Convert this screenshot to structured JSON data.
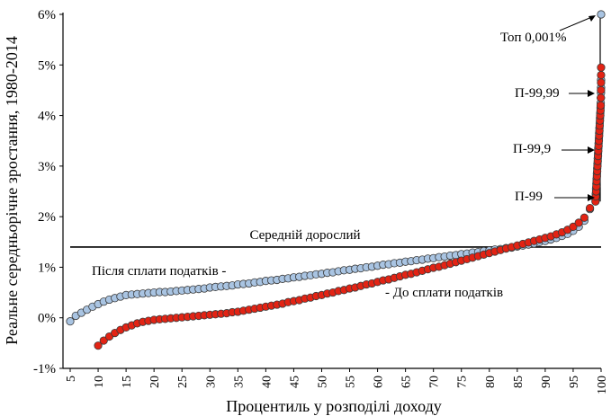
{
  "chart_data": {
    "type": "scatter",
    "title": "",
    "xlabel": "Процентиль у розподілі доходу",
    "ylabel": "Реальне середньорічне зростання, 1980-2014",
    "xlim": [
      5,
      100
    ],
    "ylim": [
      -1,
      6
    ],
    "yticks": [
      "-1%",
      "0%",
      "1%",
      "2%",
      "3%",
      "4%",
      "5%",
      "6%"
    ],
    "ytick_values": [
      -1,
      0,
      1,
      2,
      3,
      4,
      5,
      6
    ],
    "xticks": [
      "5",
      "10",
      "15",
      "20",
      "25",
      "30",
      "35",
      "40",
      "45",
      "50",
      "55",
      "60",
      "65",
      "70",
      "75",
      "80",
      "85",
      "90",
      "95",
      "100"
    ],
    "xtick_values": [
      5,
      10,
      15,
      20,
      25,
      30,
      35,
      40,
      45,
      50,
      55,
      60,
      65,
      70,
      75,
      80,
      85,
      90,
      95,
      100
    ],
    "grid": false,
    "reference_line": {
      "label": "Середній дорослий",
      "y": 1.4
    },
    "series": [
      {
        "name": "Після сплати податків",
        "color": "#a9c4e2",
        "points": [
          [
            5,
            -0.07
          ],
          [
            6,
            0.04
          ],
          [
            7,
            0.1
          ],
          [
            8,
            0.16
          ],
          [
            9,
            0.22
          ],
          [
            10,
            0.27
          ],
          [
            11,
            0.32
          ],
          [
            12,
            0.36
          ],
          [
            13,
            0.39
          ],
          [
            14,
            0.42
          ],
          [
            15,
            0.45
          ],
          [
            16,
            0.46
          ],
          [
            17,
            0.47
          ],
          [
            18,
            0.48
          ],
          [
            19,
            0.49
          ],
          [
            20,
            0.5
          ],
          [
            21,
            0.51
          ],
          [
            22,
            0.51
          ],
          [
            23,
            0.52
          ],
          [
            24,
            0.53
          ],
          [
            25,
            0.54
          ],
          [
            26,
            0.55
          ],
          [
            27,
            0.56
          ],
          [
            28,
            0.57
          ],
          [
            29,
            0.58
          ],
          [
            30,
            0.6
          ],
          [
            31,
            0.61
          ],
          [
            32,
            0.62
          ],
          [
            33,
            0.63
          ],
          [
            34,
            0.64
          ],
          [
            35,
            0.66
          ],
          [
            36,
            0.67
          ],
          [
            37,
            0.68
          ],
          [
            38,
            0.7
          ],
          [
            39,
            0.71
          ],
          [
            40,
            0.73
          ],
          [
            41,
            0.74
          ],
          [
            42,
            0.75
          ],
          [
            43,
            0.77
          ],
          [
            44,
            0.78
          ],
          [
            45,
            0.8
          ],
          [
            46,
            0.81
          ],
          [
            47,
            0.83
          ],
          [
            48,
            0.84
          ],
          [
            49,
            0.86
          ],
          [
            50,
            0.87
          ],
          [
            51,
            0.89
          ],
          [
            52,
            0.9
          ],
          [
            53,
            0.92
          ],
          [
            54,
            0.94
          ],
          [
            55,
            0.95
          ],
          [
            56,
            0.97
          ],
          [
            57,
            0.98
          ],
          [
            58,
            1.0
          ],
          [
            59,
            1.01
          ],
          [
            60,
            1.03
          ],
          [
            61,
            1.05
          ],
          [
            62,
            1.06
          ],
          [
            63,
            1.08
          ],
          [
            64,
            1.09
          ],
          [
            65,
            1.11
          ],
          [
            66,
            1.12
          ],
          [
            67,
            1.14
          ],
          [
            68,
            1.15
          ],
          [
            69,
            1.17
          ],
          [
            70,
            1.18
          ],
          [
            71,
            1.2
          ],
          [
            72,
            1.21
          ],
          [
            73,
            1.23
          ],
          [
            74,
            1.24
          ],
          [
            75,
            1.26
          ],
          [
            76,
            1.27
          ],
          [
            77,
            1.29
          ],
          [
            78,
            1.3
          ],
          [
            79,
            1.32
          ],
          [
            80,
            1.33
          ],
          [
            81,
            1.35
          ],
          [
            82,
            1.36
          ],
          [
            83,
            1.38
          ],
          [
            84,
            1.39
          ],
          [
            85,
            1.41
          ],
          [
            86,
            1.43
          ],
          [
            87,
            1.45
          ],
          [
            88,
            1.47
          ],
          [
            89,
            1.5
          ],
          [
            90,
            1.52
          ],
          [
            91,
            1.55
          ],
          [
            92,
            1.58
          ],
          [
            93,
            1.62
          ],
          [
            94,
            1.66
          ],
          [
            95,
            1.72
          ],
          [
            96,
            1.8
          ],
          [
            97,
            1.92
          ],
          [
            98,
            2.15
          ],
          [
            99.0,
            2.35
          ],
          [
            99.05,
            2.45
          ],
          [
            99.1,
            2.55
          ],
          [
            99.15,
            2.65
          ],
          [
            99.2,
            2.75
          ],
          [
            99.25,
            2.85
          ],
          [
            99.3,
            2.95
          ],
          [
            99.35,
            3.05
          ],
          [
            99.4,
            3.15
          ],
          [
            99.45,
            3.25
          ],
          [
            99.5,
            3.35
          ],
          [
            99.55,
            3.45
          ],
          [
            99.6,
            3.55
          ],
          [
            99.65,
            3.65
          ],
          [
            99.7,
            3.75
          ],
          [
            99.75,
            3.85
          ],
          [
            99.8,
            3.95
          ],
          [
            99.85,
            4.05
          ],
          [
            99.9,
            4.15
          ],
          [
            99.93,
            4.25
          ],
          [
            99.96,
            4.35
          ],
          [
            99.98,
            4.45
          ],
          [
            99.99,
            4.55
          ],
          [
            99.995,
            4.7
          ],
          [
            99.999,
            6.0
          ]
        ]
      },
      {
        "name": "До сплати податків",
        "color": "#e32314",
        "points": [
          [
            10,
            -0.55
          ],
          [
            11,
            -0.45
          ],
          [
            12,
            -0.37
          ],
          [
            13,
            -0.3
          ],
          [
            14,
            -0.24
          ],
          [
            15,
            -0.19
          ],
          [
            16,
            -0.15
          ],
          [
            17,
            -0.11
          ],
          [
            18,
            -0.08
          ],
          [
            19,
            -0.06
          ],
          [
            20,
            -0.04
          ],
          [
            21,
            -0.03
          ],
          [
            22,
            -0.02
          ],
          [
            23,
            -0.01
          ],
          [
            24,
            0.0
          ],
          [
            25,
            0.01
          ],
          [
            26,
            0.02
          ],
          [
            27,
            0.03
          ],
          [
            28,
            0.04
          ],
          [
            29,
            0.05
          ],
          [
            30,
            0.06
          ],
          [
            31,
            0.07
          ],
          [
            32,
            0.08
          ],
          [
            33,
            0.09
          ],
          [
            34,
            0.11
          ],
          [
            35,
            0.12
          ],
          [
            36,
            0.14
          ],
          [
            37,
            0.16
          ],
          [
            38,
            0.18
          ],
          [
            39,
            0.2
          ],
          [
            40,
            0.22
          ],
          [
            41,
            0.24
          ],
          [
            42,
            0.26
          ],
          [
            43,
            0.28
          ],
          [
            44,
            0.31
          ],
          [
            45,
            0.33
          ],
          [
            46,
            0.35
          ],
          [
            47,
            0.38
          ],
          [
            48,
            0.4
          ],
          [
            49,
            0.43
          ],
          [
            50,
            0.45
          ],
          [
            51,
            0.48
          ],
          [
            52,
            0.5
          ],
          [
            53,
            0.53
          ],
          [
            54,
            0.55
          ],
          [
            55,
            0.58
          ],
          [
            56,
            0.6
          ],
          [
            57,
            0.63
          ],
          [
            58,
            0.66
          ],
          [
            59,
            0.68
          ],
          [
            60,
            0.71
          ],
          [
            61,
            0.74
          ],
          [
            62,
            0.76
          ],
          [
            63,
            0.79
          ],
          [
            64,
            0.82
          ],
          [
            65,
            0.85
          ],
          [
            66,
            0.87
          ],
          [
            67,
            0.9
          ],
          [
            68,
            0.93
          ],
          [
            69,
            0.96
          ],
          [
            70,
            0.99
          ],
          [
            71,
            1.01
          ],
          [
            72,
            1.04
          ],
          [
            73,
            1.07
          ],
          [
            74,
            1.1
          ],
          [
            75,
            1.13
          ],
          [
            76,
            1.16
          ],
          [
            77,
            1.19
          ],
          [
            78,
            1.22
          ],
          [
            79,
            1.25
          ],
          [
            80,
            1.28
          ],
          [
            81,
            1.31
          ],
          [
            82,
            1.34
          ],
          [
            83,
            1.37
          ],
          [
            84,
            1.4
          ],
          [
            85,
            1.43
          ],
          [
            86,
            1.46
          ],
          [
            87,
            1.49
          ],
          [
            88,
            1.52
          ],
          [
            89,
            1.55
          ],
          [
            90,
            1.58
          ],
          [
            91,
            1.61
          ],
          [
            92,
            1.65
          ],
          [
            93,
            1.69
          ],
          [
            94,
            1.74
          ],
          [
            95,
            1.8
          ],
          [
            96,
            1.88
          ],
          [
            97,
            1.98
          ],
          [
            98,
            2.17
          ],
          [
            99.0,
            2.3
          ],
          [
            99.05,
            2.4
          ],
          [
            99.1,
            2.5
          ],
          [
            99.15,
            2.6
          ],
          [
            99.2,
            2.7
          ],
          [
            99.25,
            2.8
          ],
          [
            99.3,
            2.9
          ],
          [
            99.35,
            3.0
          ],
          [
            99.4,
            3.1
          ],
          [
            99.45,
            3.2
          ],
          [
            99.5,
            3.3
          ],
          [
            99.55,
            3.4
          ],
          [
            99.6,
            3.5
          ],
          [
            99.65,
            3.6
          ],
          [
            99.7,
            3.7
          ],
          [
            99.75,
            3.8
          ],
          [
            99.8,
            3.9
          ],
          [
            99.85,
            4.0
          ],
          [
            99.9,
            4.1
          ],
          [
            99.93,
            4.2
          ],
          [
            99.96,
            4.35
          ],
          [
            99.98,
            4.5
          ],
          [
            99.99,
            4.65
          ],
          [
            99.995,
            4.8
          ],
          [
            99.999,
            4.95
          ]
        ]
      }
    ],
    "annotations": [
      {
        "text": "Топ 0,001%",
        "x": 99.999,
        "y": 6.0
      },
      {
        "text": "П-99,99",
        "x": 99.99,
        "y": 4.4
      },
      {
        "text": "П-99,9",
        "x": 99.9,
        "y": 3.4
      },
      {
        "text": "П-99",
        "x": 99.0,
        "y": 2.3
      },
      {
        "text": "Після сплати податків -",
        "series": "Після сплати податків"
      },
      {
        "text": "- До сплати податків",
        "series": "До сплати податків"
      }
    ]
  }
}
